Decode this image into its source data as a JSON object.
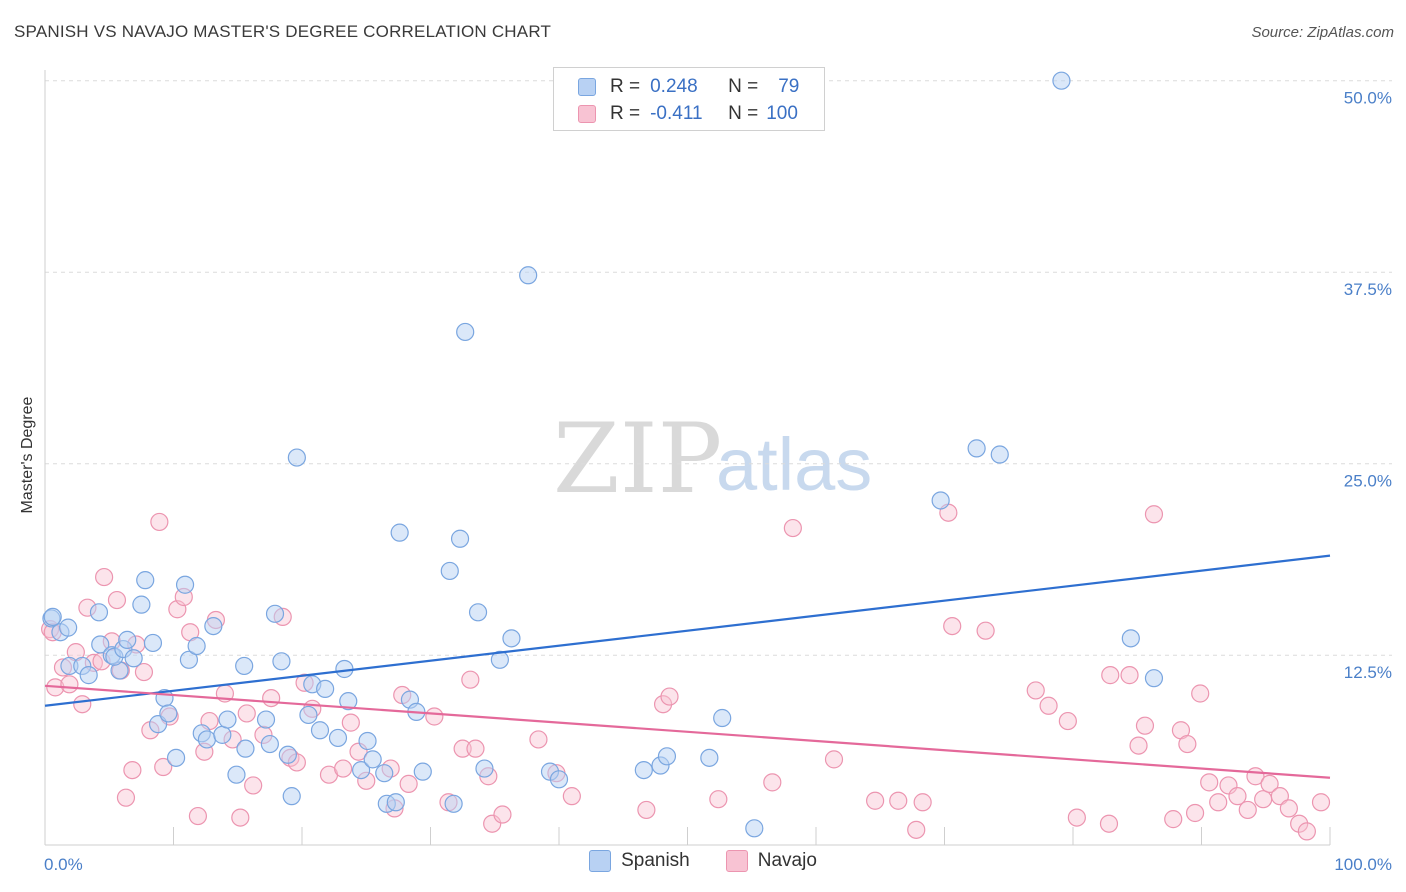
{
  "header": {
    "title": "SPANISH VS NAVAJO MASTER'S DEGREE CORRELATION CHART",
    "source": "Source: ZipAtlas.com"
  },
  "watermark": {
    "zip": "ZIP",
    "atlas": "atlas"
  },
  "legend": {
    "rows": [
      {
        "r_label": "R =",
        "r_value": "0.248",
        "n_label": "N =",
        "n_value": "79"
      },
      {
        "r_label": "R =",
        "r_value": "-0.411",
        "n_label": "N =",
        "n_value": "100"
      }
    ]
  },
  "colors": {
    "spanish_fill": "#b8d1f3",
    "spanish_stroke": "#7aa6e0",
    "spanish_line": "#2e6fd0",
    "navajo_fill": "#f8c3d3",
    "navajo_stroke": "#ec95b0",
    "navajo_line": "#e4699a",
    "grid": "#dcdcdc",
    "tick_text": "#4a7fc8"
  },
  "chart_data": {
    "type": "scatter",
    "title": "SPANISH VS NAVAJO MASTER'S DEGREE CORRELATION CHART",
    "xlabel": "",
    "ylabel": "Master's Degree",
    "xlim": [
      0,
      100
    ],
    "ylim": [
      0,
      51
    ],
    "x_tick_labels": [
      "0.0%",
      "100.0%"
    ],
    "y_ticks": [
      12.5,
      25.0,
      37.5,
      50.0
    ],
    "y_tick_labels": [
      "12.5%",
      "25.0%",
      "37.5%",
      "50.0%"
    ],
    "grid": true,
    "legend_position": "top-center",
    "series": [
      {
        "name": "Spanish",
        "R": 0.248,
        "N": 79,
        "trend": {
          "x": [
            0,
            100
          ],
          "y": [
            9.2,
            19.0
          ]
        },
        "points": [
          [
            0.5,
            14.9
          ],
          [
            0.6,
            15.0
          ],
          [
            1.2,
            14.0
          ],
          [
            1.8,
            14.3
          ],
          [
            1.9,
            11.8
          ],
          [
            2.9,
            11.8
          ],
          [
            3.4,
            11.2
          ],
          [
            4.2,
            15.3
          ],
          [
            4.3,
            13.2
          ],
          [
            5.2,
            12.5
          ],
          [
            5.8,
            11.5
          ],
          [
            5.4,
            12.4
          ],
          [
            6.1,
            12.9
          ],
          [
            6.4,
            13.5
          ],
          [
            6.9,
            12.3
          ],
          [
            7.5,
            15.8
          ],
          [
            7.8,
            17.4
          ],
          [
            8.4,
            13.3
          ],
          [
            8.8,
            8.0
          ],
          [
            9.3,
            9.7
          ],
          [
            9.6,
            8.7
          ],
          [
            10.2,
            5.8
          ],
          [
            10.9,
            17.1
          ],
          [
            11.2,
            12.2
          ],
          [
            11.8,
            13.1
          ],
          [
            12.2,
            7.4
          ],
          [
            12.6,
            7.0
          ],
          [
            13.1,
            14.4
          ],
          [
            13.8,
            7.3
          ],
          [
            14.2,
            8.3
          ],
          [
            14.9,
            4.7
          ],
          [
            15.5,
            11.8
          ],
          [
            15.6,
            6.4
          ],
          [
            17.2,
            8.3
          ],
          [
            17.5,
            6.7
          ],
          [
            17.9,
            15.2
          ],
          [
            18.4,
            12.1
          ],
          [
            18.9,
            6.0
          ],
          [
            19.2,
            3.3
          ],
          [
            19.6,
            25.4
          ],
          [
            20.5,
            8.6
          ],
          [
            20.8,
            10.6
          ],
          [
            21.4,
            7.6
          ],
          [
            21.8,
            10.3
          ],
          [
            22.8,
            7.1
          ],
          [
            23.3,
            11.6
          ],
          [
            23.6,
            9.5
          ],
          [
            24.6,
            5.0
          ],
          [
            25.1,
            6.9
          ],
          [
            25.5,
            5.7
          ],
          [
            26.4,
            4.8
          ],
          [
            26.6,
            2.8
          ],
          [
            27.3,
            2.9
          ],
          [
            27.6,
            20.5
          ],
          [
            28.4,
            9.6
          ],
          [
            28.9,
            8.8
          ],
          [
            29.4,
            4.9
          ],
          [
            31.5,
            18.0
          ],
          [
            31.8,
            2.8
          ],
          [
            32.3,
            20.1
          ],
          [
            32.7,
            33.6
          ],
          [
            33.7,
            15.3
          ],
          [
            34.2,
            5.1
          ],
          [
            35.4,
            12.2
          ],
          [
            36.3,
            13.6
          ],
          [
            37.6,
            37.3
          ],
          [
            39.3,
            4.9
          ],
          [
            40.0,
            4.4
          ],
          [
            46.6,
            5.0
          ],
          [
            47.9,
            5.3
          ],
          [
            48.4,
            5.9
          ],
          [
            51.7,
            5.8
          ],
          [
            52.7,
            8.4
          ],
          [
            55.2,
            1.2
          ],
          [
            69.7,
            22.6
          ],
          [
            72.5,
            26.0
          ],
          [
            74.3,
            25.6
          ],
          [
            79.1,
            50.0
          ],
          [
            84.5,
            13.6
          ],
          [
            86.3,
            11.0
          ]
        ]
      },
      {
        "name": "Navajo",
        "R": -0.411,
        "N": 100,
        "trend": {
          "x": [
            0,
            100
          ],
          "y": [
            10.5,
            4.5
          ]
        },
        "points": [
          [
            0.4,
            14.2
          ],
          [
            0.6,
            14.0
          ],
          [
            0.8,
            10.4
          ],
          [
            1.4,
            11.7
          ],
          [
            1.9,
            10.6
          ],
          [
            2.4,
            12.7
          ],
          [
            2.9,
            9.3
          ],
          [
            3.3,
            15.6
          ],
          [
            3.8,
            12.0
          ],
          [
            4.4,
            12.1
          ],
          [
            4.6,
            17.6
          ],
          [
            5.2,
            13.4
          ],
          [
            5.6,
            16.1
          ],
          [
            5.9,
            11.5
          ],
          [
            6.3,
            3.2
          ],
          [
            6.8,
            5.0
          ],
          [
            7.1,
            13.2
          ],
          [
            7.7,
            11.4
          ],
          [
            8.2,
            7.6
          ],
          [
            8.9,
            21.2
          ],
          [
            9.2,
            5.2
          ],
          [
            9.7,
            8.5
          ],
          [
            10.3,
            15.5
          ],
          [
            10.8,
            16.3
          ],
          [
            11.3,
            14.0
          ],
          [
            11.9,
            2.0
          ],
          [
            12.4,
            6.2
          ],
          [
            12.8,
            8.2
          ],
          [
            13.3,
            14.8
          ],
          [
            14.0,
            10.0
          ],
          [
            14.6,
            7.0
          ],
          [
            15.2,
            1.9
          ],
          [
            15.7,
            8.7
          ],
          [
            16.2,
            4.0
          ],
          [
            17.0,
            7.3
          ],
          [
            17.6,
            9.7
          ],
          [
            18.5,
            15.0
          ],
          [
            19.1,
            5.8
          ],
          [
            19.6,
            5.5
          ],
          [
            20.2,
            10.7
          ],
          [
            20.8,
            9.0
          ],
          [
            22.1,
            4.7
          ],
          [
            23.2,
            5.1
          ],
          [
            23.8,
            8.1
          ],
          [
            24.4,
            6.2
          ],
          [
            25.0,
            4.3
          ],
          [
            26.9,
            5.1
          ],
          [
            27.2,
            2.5
          ],
          [
            27.8,
            9.9
          ],
          [
            28.3,
            4.1
          ],
          [
            30.3,
            8.5
          ],
          [
            31.4,
            2.9
          ],
          [
            32.5,
            6.4
          ],
          [
            33.1,
            10.9
          ],
          [
            33.5,
            6.4
          ],
          [
            34.8,
            1.5
          ],
          [
            35.6,
            2.1
          ],
          [
            34.5,
            4.6
          ],
          [
            38.4,
            7.0
          ],
          [
            39.8,
            4.8
          ],
          [
            41.0,
            3.3
          ],
          [
            46.8,
            2.4
          ],
          [
            48.1,
            9.3
          ],
          [
            48.6,
            9.8
          ],
          [
            52.4,
            3.1
          ],
          [
            56.6,
            4.2
          ],
          [
            58.2,
            20.8
          ],
          [
            61.4,
            5.7
          ],
          [
            64.6,
            3.0
          ],
          [
            66.4,
            3.0
          ],
          [
            67.8,
            1.1
          ],
          [
            68.3,
            2.9
          ],
          [
            70.3,
            21.8
          ],
          [
            70.6,
            14.4
          ],
          [
            73.2,
            14.1
          ],
          [
            77.1,
            10.2
          ],
          [
            78.1,
            9.2
          ],
          [
            79.6,
            8.2
          ],
          [
            80.3,
            1.9
          ],
          [
            82.8,
            1.5
          ],
          [
            82.9,
            11.2
          ],
          [
            84.4,
            11.2
          ],
          [
            85.1,
            6.6
          ],
          [
            85.6,
            7.9
          ],
          [
            86.3,
            21.7
          ],
          [
            87.8,
            1.8
          ],
          [
            88.4,
            7.6
          ],
          [
            88.9,
            6.7
          ],
          [
            89.5,
            2.2
          ],
          [
            89.9,
            10.0
          ],
          [
            90.6,
            4.2
          ],
          [
            91.3,
            2.9
          ],
          [
            92.1,
            4.0
          ],
          [
            92.8,
            3.3
          ],
          [
            93.6,
            2.4
          ],
          [
            94.2,
            4.6
          ],
          [
            94.8,
            3.1
          ],
          [
            95.3,
            4.1
          ],
          [
            96.1,
            3.3
          ],
          [
            96.8,
            2.5
          ],
          [
            97.6,
            1.5
          ],
          [
            98.2,
            1.0
          ],
          [
            99.3,
            2.9
          ]
        ]
      }
    ]
  }
}
